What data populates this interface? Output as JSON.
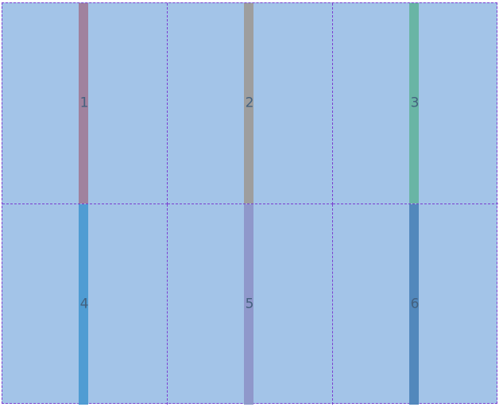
{
  "cells": [
    {
      "label": "1",
      "bar_color": "#a0829e"
    },
    {
      "label": "2",
      "bar_color": "#9e9e9e"
    },
    {
      "label": "3",
      "bar_color": "#69b5a5"
    },
    {
      "label": "4",
      "bar_color": "#4f9cd3"
    },
    {
      "label": "5",
      "bar_color": "#8f98cb"
    },
    {
      "label": "6",
      "bar_color": "#5288bc"
    }
  ],
  "colors": {
    "cell_background": "#a3c4e8",
    "grid_border": "#7b3fd0",
    "label_text": "#44617f"
  }
}
